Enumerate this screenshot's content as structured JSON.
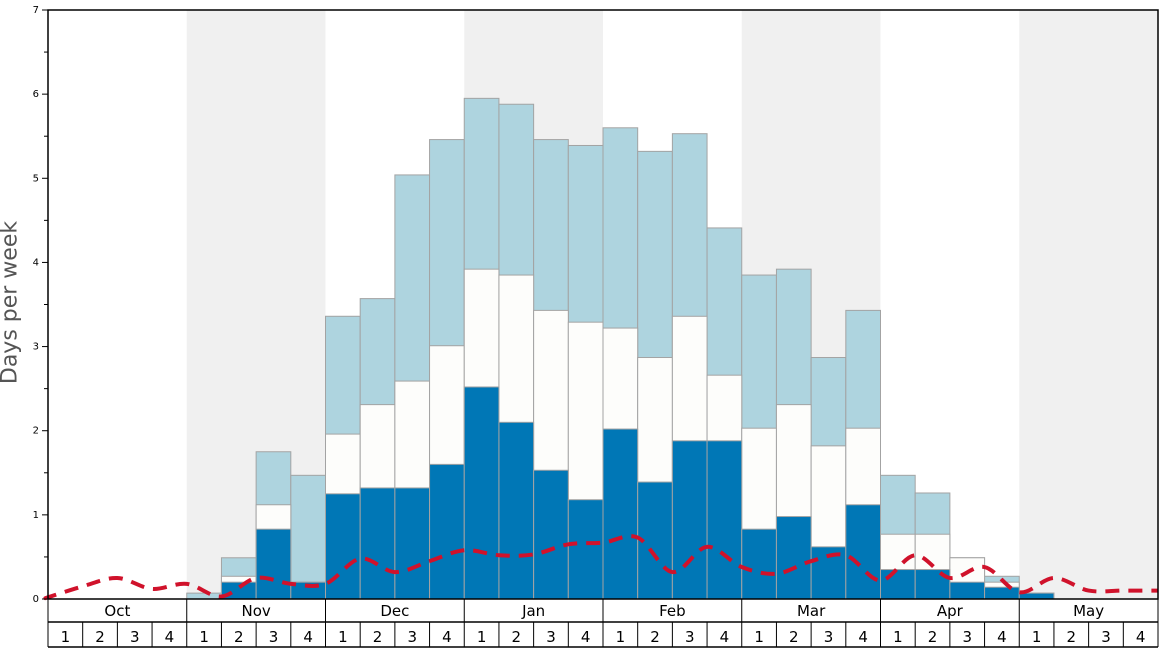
{
  "chart_data": {
    "type": "bar",
    "stacked": true,
    "title": "",
    "xlabel": "",
    "ylabel": "Days per week",
    "ylim": [
      0,
      7
    ],
    "yticks": [
      "0",
      "1",
      "2",
      "3",
      "4",
      "5",
      "6",
      "7"
    ],
    "months": [
      "Oct",
      "Nov",
      "Dec",
      "Jan",
      "Feb",
      "Mar",
      "Apr",
      "May"
    ],
    "week_labels": [
      "1",
      "2",
      "3",
      "4"
    ],
    "series_totals": {
      "dark_blue": [
        0,
        0,
        0,
        0,
        0,
        0.2,
        0.83,
        0.2,
        1.25,
        1.32,
        1.32,
        1.6,
        2.52,
        2.1,
        1.53,
        1.18,
        2.02,
        1.39,
        1.88,
        1.88,
        0.83,
        0.98,
        0.62,
        1.12,
        0.35,
        0.35,
        0.2,
        0.14,
        0.07,
        0,
        0,
        0
      ],
      "white": [
        0,
        0,
        0,
        0,
        0,
        0.27,
        1.12,
        0.2,
        1.96,
        2.31,
        2.59,
        3.01,
        3.92,
        3.85,
        3.43,
        3.29,
        3.22,
        2.87,
        3.36,
        2.66,
        2.03,
        2.31,
        1.82,
        2.03,
        0.77,
        0.77,
        0.49,
        0.2,
        0.07,
        0,
        0,
        0
      ],
      "light_blue": [
        0,
        0,
        0,
        0,
        0.07,
        0.49,
        1.75,
        1.47,
        3.36,
        3.57,
        5.04,
        5.46,
        5.95,
        5.88,
        5.46,
        5.39,
        5.6,
        5.32,
        5.53,
        4.41,
        3.85,
        3.92,
        2.87,
        3.43,
        1.47,
        1.26,
        0.49,
        0.27,
        0.07,
        0,
        0,
        0
      ]
    },
    "dashed_line": [
      0.02,
      0.15,
      0.25,
      0.12,
      0.18,
      0.03,
      0.25,
      0.18,
      0.18,
      0.48,
      0.32,
      0.45,
      0.58,
      0.52,
      0.53,
      0.65,
      0.67,
      0.73,
      0.32,
      0.62,
      0.38,
      0.3,
      0.45,
      0.52,
      0.22,
      0.52,
      0.25,
      0.38,
      0.08,
      0.25,
      0.1,
      0.1
    ],
    "colors": {
      "dark_blue": "#0077b6",
      "white": "#fdfdfb",
      "light_blue": "#aed4df",
      "bar_outline": "#a3a3a3",
      "dashed_line": "#d0122b",
      "shade": "#f0f0f0",
      "axis": "#000000"
    },
    "month_shading": [
      false,
      true,
      false,
      true,
      false,
      true,
      false,
      true
    ],
    "grid": false,
    "legend": "none"
  }
}
